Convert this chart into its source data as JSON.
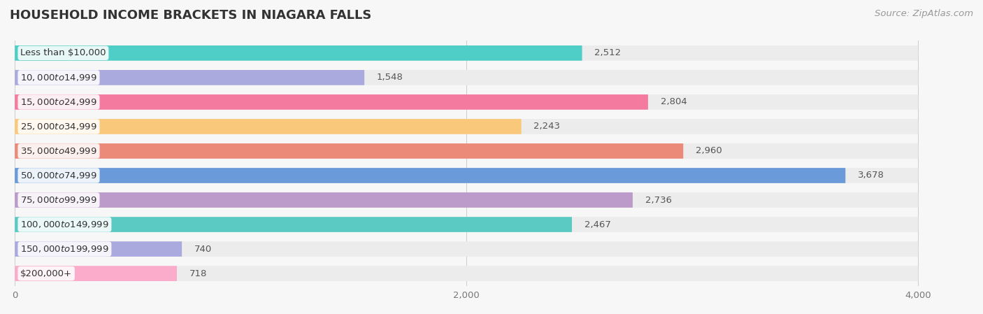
{
  "title": "HOUSEHOLD INCOME BRACKETS IN NIAGARA FALLS",
  "source": "Source: ZipAtlas.com",
  "categories": [
    "Less than $10,000",
    "$10,000 to $14,999",
    "$15,000 to $24,999",
    "$25,000 to $34,999",
    "$35,000 to $49,999",
    "$50,000 to $74,999",
    "$75,000 to $99,999",
    "$100,000 to $149,999",
    "$150,000 to $199,999",
    "$200,000+"
  ],
  "values": [
    2512,
    1548,
    2804,
    2243,
    2960,
    3678,
    2736,
    2467,
    740,
    718
  ],
  "bar_colors": [
    "#4ECEC6",
    "#AAAADE",
    "#F47AA0",
    "#FAC87A",
    "#EC8A7A",
    "#6A9ADA",
    "#BC9ACA",
    "#5ACAC2",
    "#AAAADE",
    "#FAACCA"
  ],
  "xlim": [
    0,
    4200
  ],
  "xticks": [
    0,
    2000,
    4000
  ],
  "background_color": "#f7f7f7",
  "row_bg_color": "#ececec",
  "title_fontsize": 13,
  "label_fontsize": 9.5,
  "value_fontsize": 9.5,
  "source_fontsize": 9.5
}
